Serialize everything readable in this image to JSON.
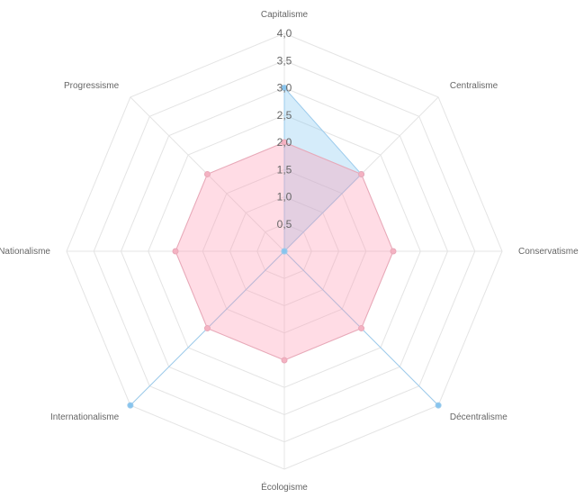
{
  "chart_data": {
    "type": "radar",
    "axes": [
      "Capitalisme",
      "Centralisme",
      "Conservatisme",
      "Décentralisme",
      "Écologisme",
      "Internationalisme",
      "Nationalisme",
      "Progressisme"
    ],
    "scale": {
      "min": 0,
      "max": 4,
      "ticks": [
        "0,5",
        "1,0",
        "1,5",
        "2,0",
        "2,5",
        "3,0",
        "3,5",
        "4,0"
      ],
      "tick_values": [
        0.5,
        1,
        1.5,
        2,
        2.5,
        3,
        3.5,
        4
      ]
    },
    "grid": true,
    "legend": "none",
    "series": [
      {
        "values": [
          3,
          2,
          0,
          4,
          0,
          4,
          0,
          0
        ],
        "fill": "rgba(135, 200, 240, 0.35)",
        "stroke": "#9ccbec",
        "point": "#87c4ee"
      },
      {
        "values": [
          2,
          2,
          2,
          2,
          2,
          2,
          2,
          2
        ],
        "fill": "rgba(255, 150, 175, 0.33)",
        "stroke": "#e9a8b8",
        "point": "#f4b2c2"
      }
    ]
  }
}
